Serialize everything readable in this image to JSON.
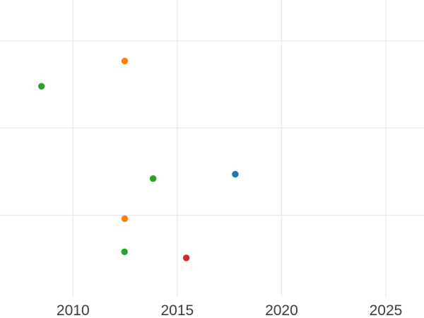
{
  "chart_data": {
    "type": "scatter",
    "title": "",
    "xlabel": "",
    "ylabel": "",
    "background": "#ffffff",
    "grid": true,
    "legend": "none",
    "x_ticks": [
      2010,
      2015,
      2020,
      2025
    ],
    "x_tick_labels": [
      "2010",
      "2015",
      "2020",
      "2025"
    ],
    "xlim": [
      2006.5,
      2026.83
    ],
    "y_gridlines": [
      1,
      2,
      3
    ],
    "y_tick_labels_visible": false,
    "ylim": [
      -0.18,
      3.47
    ],
    "y_units": "unlabeled-gridline-units",
    "marker_radius_px": 4.7,
    "gridline_color": "#e9e9e9",
    "tick_label_color": "#3c3c3c",
    "series_colors": {
      "blue": "#1f77b4",
      "orange": "#ff7f0e",
      "green": "#2ca02c",
      "red": "#d62728"
    },
    "points": [
      {
        "series": "green",
        "x": 2008.49,
        "y": 2.48
      },
      {
        "series": "orange",
        "x": 2012.48,
        "y": 2.77
      },
      {
        "series": "green",
        "x": 2013.84,
        "y": 1.42
      },
      {
        "series": "blue",
        "x": 2017.78,
        "y": 1.47
      },
      {
        "series": "orange",
        "x": 2012.48,
        "y": 0.96
      },
      {
        "series": "green",
        "x": 2012.47,
        "y": 0.58
      },
      {
        "series": "red",
        "x": 2015.43,
        "y": 0.51
      }
    ]
  }
}
